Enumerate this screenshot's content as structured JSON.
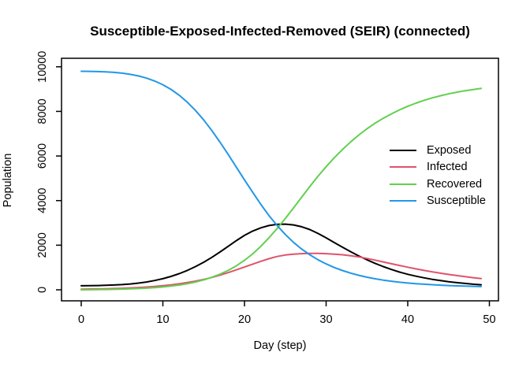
{
  "title": "Susceptible-Exposed-Infected-Removed (SEIR) (connected)",
  "colors": {
    "exposed": "#000000",
    "infected": "#DF536B",
    "recovered": "#61D04F",
    "susceptible": "#2297E6",
    "axis": "#000000",
    "background": "#FFFFFF"
  },
  "chart_data": {
    "type": "line",
    "title": "Susceptible-Exposed-Infected-Removed (SEIR) (connected)",
    "xlabel": "Day (step)",
    "ylabel": "Population",
    "xlim": [
      0,
      50
    ],
    "ylim": [
      0,
      10000
    ],
    "x_ticks": [
      0,
      10,
      20,
      30,
      40,
      50
    ],
    "y_ticks": [
      0,
      2000,
      4000,
      6000,
      8000,
      10000
    ],
    "grid": false,
    "legend_position": "right-middle",
    "legend": [
      "Exposed",
      "Infected",
      "Recovered",
      "Susceptible"
    ],
    "x": [
      0,
      1,
      2,
      3,
      4,
      5,
      6,
      7,
      8,
      9,
      10,
      11,
      12,
      13,
      14,
      15,
      16,
      17,
      18,
      19,
      20,
      21,
      22,
      23,
      24,
      25,
      26,
      27,
      28,
      29,
      30,
      31,
      32,
      33,
      34,
      35,
      36,
      37,
      38,
      39,
      40,
      41,
      42,
      43,
      44,
      45,
      46,
      47,
      48,
      49
    ],
    "series": [
      {
        "name": "Exposed",
        "color": "#000000",
        "values": [
          180,
          184,
          190,
          200,
          214,
          234,
          262,
          300,
          350,
          415,
          498,
          600,
          724,
          870,
          1040,
          1235,
          1455,
          1695,
          1950,
          2205,
          2440,
          2635,
          2780,
          2880,
          2935,
          2945,
          2910,
          2830,
          2700,
          2530,
          2330,
          2120,
          1910,
          1710,
          1520,
          1345,
          1185,
          1040,
          910,
          795,
          695,
          610,
          535,
          470,
          415,
          365,
          320,
          285,
          252,
          225
        ]
      },
      {
        "name": "Infected",
        "color": "#DF536B",
        "values": [
          30,
          34,
          39,
          46,
          56,
          68,
          83,
          101,
          123,
          150,
          182,
          221,
          268,
          324,
          390,
          467,
          556,
          657,
          770,
          893,
          1022,
          1152,
          1278,
          1394,
          1495,
          1560,
          1600,
          1620,
          1630,
          1630,
          1620,
          1600,
          1570,
          1530,
          1475,
          1405,
          1330,
          1250,
          1170,
          1090,
          1015,
          940,
          870,
          805,
          745,
          690,
          640,
          590,
          545,
          505
        ]
      },
      {
        "name": "Recovered",
        "color": "#61D04F",
        "values": [
          0,
          4,
          9,
          15,
          22,
          31,
          42,
          56,
          74,
          97,
          127,
          165,
          213,
          273,
          350,
          445,
          560,
          700,
          870,
          1075,
          1320,
          1610,
          1950,
          2330,
          2750,
          3200,
          3670,
          4150,
          4630,
          5090,
          5520,
          5920,
          6290,
          6630,
          6940,
          7220,
          7470,
          7690,
          7890,
          8070,
          8230,
          8370,
          8495,
          8605,
          8700,
          8785,
          8860,
          8925,
          8980,
          9030
        ]
      },
      {
        "name": "Susceptible",
        "color": "#2297E6",
        "values": [
          9800,
          9795,
          9786,
          9771,
          9748,
          9713,
          9662,
          9590,
          9492,
          9362,
          9195,
          8985,
          8725,
          8410,
          8040,
          7615,
          7140,
          6620,
          6070,
          5500,
          4930,
          4370,
          3830,
          3330,
          2880,
          2480,
          2130,
          1830,
          1570,
          1350,
          1160,
          1000,
          865,
          750,
          650,
          565,
          495,
          435,
          385,
          340,
          305,
          275,
          250,
          228,
          208,
          192,
          178,
          165,
          154,
          145
        ]
      }
    ]
  }
}
